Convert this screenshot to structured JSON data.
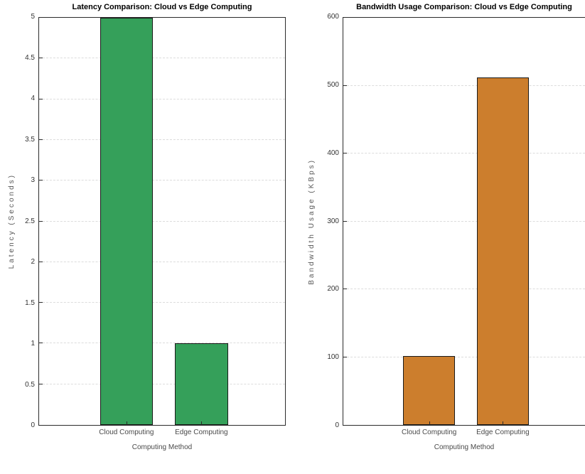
{
  "figure": {
    "background": "#ffffff"
  },
  "chart_data": [
    {
      "type": "bar",
      "title": "Latency Comparison: Cloud vs Edge Computing",
      "xlabel": "Computing Method",
      "ylabel": "Latency (Seconds)",
      "categories": [
        "Cloud Computing",
        "Edge Computing"
      ],
      "values": [
        5,
        1
      ],
      "ylim": [
        0,
        5
      ],
      "yticks": [
        "0",
        "0.5",
        "1",
        "1.5",
        "2",
        "2.5",
        "3",
        "3.5",
        "4",
        "4.5",
        "5"
      ],
      "bar_color": "#35a05a",
      "bar_edge_color": "#1a1a1a",
      "grid": true,
      "legend": "none"
    },
    {
      "type": "bar",
      "title": "Bandwidth Usage Comparison: Cloud vs Edge Computing",
      "xlabel": "Computing Method",
      "ylabel": "Bandwidth Usage (KBps)",
      "categories": [
        "Cloud Computing",
        "Edge Computing"
      ],
      "values": [
        102,
        512
      ],
      "ylim": [
        0,
        600
      ],
      "yticks": [
        "0",
        "100",
        "200",
        "300",
        "400",
        "500",
        "600"
      ],
      "bar_color": "#cc7e2d",
      "bar_edge_color": "#1a1a1a",
      "grid": true,
      "legend": "none"
    }
  ]
}
